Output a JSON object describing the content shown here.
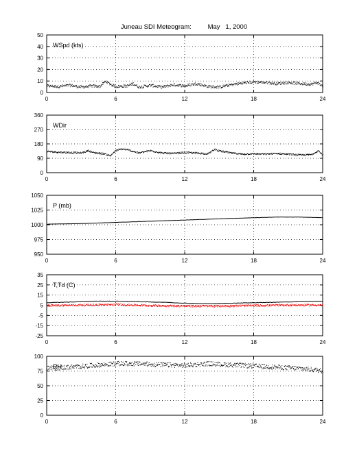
{
  "title": "Juneau SDI Meteogram:         May   1, 2000",
  "xticks": [
    "0",
    "6",
    "12",
    "18",
    "24"
  ],
  "chart_data": [
    {
      "type": "scatter",
      "label": "WSpd (kts)",
      "xlim": [
        0,
        24
      ],
      "ylim": [
        0,
        50
      ],
      "yticks": [
        "0",
        "10",
        "20",
        "30",
        "40",
        "50"
      ],
      "grid": true,
      "series": [
        {
          "kind": "dots",
          "color": "#000000",
          "anchors": [
            [
              0,
              6
            ],
            [
              1,
              5.5
            ],
            [
              2,
              6.5
            ],
            [
              3,
              5
            ],
            [
              4,
              6
            ],
            [
              4.6,
              5.5
            ],
            [
              5.1,
              10
            ],
            [
              5.6,
              7
            ],
            [
              6,
              5.5
            ],
            [
              7,
              6
            ],
            [
              7.5,
              8
            ],
            [
              8,
              5
            ],
            [
              9,
              6.5
            ],
            [
              10,
              5
            ],
            [
              11,
              7
            ],
            [
              12,
              6
            ],
            [
              13,
              8
            ],
            [
              14,
              5.5
            ],
            [
              15,
              5
            ],
            [
              16,
              7
            ],
            [
              17,
              8.5
            ],
            [
              18,
              9.5
            ],
            [
              19,
              9
            ],
            [
              20,
              8
            ],
            [
              21,
              9
            ],
            [
              22,
              8
            ],
            [
              23,
              7.5
            ],
            [
              23.5,
              9
            ],
            [
              24,
              5.5
            ]
          ],
          "jitter": 1.2
        }
      ]
    },
    {
      "type": "scatter",
      "label": "WDir",
      "xlim": [
        0,
        24
      ],
      "ylim": [
        0,
        360
      ],
      "yticks": [
        "0",
        "90",
        "180",
        "270",
        "360"
      ],
      "grid": true,
      "series": [
        {
          "kind": "dots",
          "color": "#000000",
          "anchors": [
            [
              0,
              135
            ],
            [
              1,
              130
            ],
            [
              2,
              128
            ],
            [
              3,
              125
            ],
            [
              3.6,
              140
            ],
            [
              4,
              128
            ],
            [
              5,
              120
            ],
            [
              5.5,
              108
            ],
            [
              6,
              140
            ],
            [
              6.5,
              150
            ],
            [
              7,
              145
            ],
            [
              8,
              125
            ],
            [
              9,
              140
            ],
            [
              10,
              125
            ],
            [
              11,
              122
            ],
            [
              12,
              128
            ],
            [
              13,
              125
            ],
            [
              14,
              120
            ],
            [
              14.6,
              148
            ],
            [
              15,
              138
            ],
            [
              16,
              125
            ],
            [
              17,
              118
            ],
            [
              18,
              120
            ],
            [
              19,
              118
            ],
            [
              20,
              122
            ],
            [
              21,
              118
            ],
            [
              22,
              112
            ],
            [
              23,
              115
            ],
            [
              23.6,
              140
            ],
            [
              24,
              110
            ]
          ],
          "jitter": 5
        }
      ]
    },
    {
      "type": "line",
      "label": "P (mb)",
      "xlim": [
        0,
        24
      ],
      "ylim": [
        950,
        1050
      ],
      "yticks": [
        "950",
        "975",
        "1000",
        "1025",
        "1050"
      ],
      "grid": true,
      "series": [
        {
          "kind": "line",
          "color": "#000000",
          "anchors": [
            [
              0,
              1001
            ],
            [
              3,
              1002
            ],
            [
              6,
              1004
            ],
            [
              9,
              1006
            ],
            [
              12,
              1008
            ],
            [
              15,
              1010
            ],
            [
              18,
              1012
            ],
            [
              20,
              1013
            ],
            [
              22,
              1013
            ],
            [
              24,
              1012
            ]
          ]
        }
      ]
    },
    {
      "type": "line",
      "label": "T,Td (C)",
      "xlim": [
        0,
        24
      ],
      "ylim": [
        -25,
        35
      ],
      "yticks": [
        "-25",
        "-15",
        "-5",
        "5",
        "15",
        "25",
        "35"
      ],
      "grid": true,
      "series": [
        {
          "kind": "line",
          "color": "#000000",
          "anchors": [
            [
              0,
              7.5
            ],
            [
              3,
              8.5
            ],
            [
              4,
              9
            ],
            [
              6,
              9
            ],
            [
              8,
              8.5
            ],
            [
              10,
              8
            ],
            [
              12,
              7
            ],
            [
              14,
              6.5
            ],
            [
              16,
              7
            ],
            [
              18,
              7.5
            ],
            [
              20,
              8
            ],
            [
              22,
              8.5
            ],
            [
              24,
              9
            ]
          ]
        },
        {
          "kind": "dots",
          "color": "#ff0000",
          "anchors": [
            [
              0,
              5
            ],
            [
              3,
              5.5
            ],
            [
              6,
              6
            ],
            [
              9,
              5
            ],
            [
              12,
              4.5
            ],
            [
              15,
              4.5
            ],
            [
              18,
              5
            ],
            [
              21,
              5.5
            ],
            [
              24,
              5.5
            ]
          ],
          "jitter": 1.0
        }
      ]
    },
    {
      "type": "scatter",
      "label": "RH",
      "xlim": [
        0,
        24
      ],
      "ylim": [
        0,
        100
      ],
      "yticks": [
        "0",
        "25",
        "50",
        "75",
        "100"
      ],
      "grid": true,
      "series": [
        {
          "kind": "dots",
          "color": "#000000",
          "anchors": [
            [
              0,
              80
            ],
            [
              2,
              82
            ],
            [
              4,
              85
            ],
            [
              6,
              88
            ],
            [
              8,
              88
            ],
            [
              10,
              86
            ],
            [
              12,
              85
            ],
            [
              14,
              88
            ],
            [
              16,
              86
            ],
            [
              18,
              84
            ],
            [
              20,
              82
            ],
            [
              22,
              80
            ],
            [
              24,
              76
            ]
          ],
          "jitter": 4
        }
      ]
    }
  ]
}
